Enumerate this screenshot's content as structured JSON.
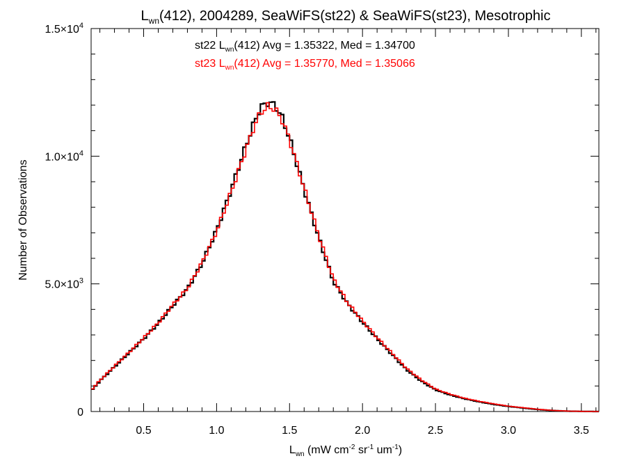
{
  "chart_data": {
    "type": "line",
    "step": true,
    "title": {
      "main": "L",
      "sub": "wn",
      "rest": "(412), 2004289, SeaWiFS(st22) & SeaWiFS(st23), Mesotrophic"
    },
    "xlabel": {
      "main": "L",
      "sub": "wn",
      "rest1": " (mW cm",
      "sup1": "-2",
      "rest2": " sr",
      "sup2": "-1",
      "rest3": " um",
      "sup3": "-1",
      "rest4": ")"
    },
    "ylabel": "Number of Observations",
    "xlim": [
      0.14,
      3.62
    ],
    "ylim": [
      0,
      15000
    ],
    "x_ticks": [
      "0.5",
      "1.0",
      "1.5",
      "2.0",
      "2.5",
      "3.0",
      "3.5"
    ],
    "y_ticks": [
      {
        "value": 0,
        "label": "0",
        "exp": ""
      },
      {
        "value": 5000,
        "label": "5.0×10",
        "exp": "3"
      },
      {
        "value": 10000,
        "label": "1.0×10",
        "exp": "4"
      },
      {
        "value": 15000,
        "label": "1.5×10",
        "exp": "4"
      }
    ],
    "annotations": [
      {
        "color": "#000000",
        "pre": "st22 L",
        "sub": "wn",
        "post": "(412) Avg = 1.35322, Med = 1.34700"
      },
      {
        "color": "#ff0000",
        "pre": "st23 L",
        "sub": "wn",
        "post": "(412) Avg = 1.35770, Med = 1.35066"
      }
    ],
    "series": [
      {
        "name": "st22",
        "color": "#000000",
        "points": [
          [
            0.14,
            800
          ],
          [
            0.2,
            1200
          ],
          [
            0.3,
            1750
          ],
          [
            0.4,
            2300
          ],
          [
            0.5,
            2850
          ],
          [
            0.6,
            3450
          ],
          [
            0.7,
            4150
          ],
          [
            0.8,
            4800
          ],
          [
            0.9,
            5800
          ],
          [
            1.0,
            7100
          ],
          [
            1.1,
            8700
          ],
          [
            1.2,
            10400
          ],
          [
            1.25,
            11200
          ],
          [
            1.3,
            11900
          ],
          [
            1.35,
            12100
          ],
          [
            1.4,
            12000
          ],
          [
            1.45,
            11500
          ],
          [
            1.5,
            10700
          ],
          [
            1.55,
            9700
          ],
          [
            1.6,
            8700
          ],
          [
            1.7,
            6800
          ],
          [
            1.8,
            5100
          ],
          [
            1.9,
            4200
          ],
          [
            2.0,
            3500
          ],
          [
            2.1,
            2850
          ],
          [
            2.2,
            2250
          ],
          [
            2.3,
            1650
          ],
          [
            2.4,
            1200
          ],
          [
            2.5,
            850
          ],
          [
            2.6,
            650
          ],
          [
            2.7,
            500
          ],
          [
            2.8,
            380
          ],
          [
            2.9,
            280
          ],
          [
            3.0,
            200
          ],
          [
            3.1,
            140
          ],
          [
            3.2,
            80
          ],
          [
            3.3,
            40
          ],
          [
            3.4,
            15
          ],
          [
            3.5,
            5
          ],
          [
            3.62,
            0
          ]
        ]
      },
      {
        "name": "st23",
        "color": "#ff0000",
        "points": [
          [
            0.14,
            830
          ],
          [
            0.2,
            1220
          ],
          [
            0.3,
            1780
          ],
          [
            0.4,
            2320
          ],
          [
            0.5,
            2880
          ],
          [
            0.6,
            3480
          ],
          [
            0.7,
            4180
          ],
          [
            0.8,
            4820
          ],
          [
            0.9,
            5830
          ],
          [
            1.0,
            7050
          ],
          [
            1.1,
            8600
          ],
          [
            1.2,
            10250
          ],
          [
            1.25,
            11050
          ],
          [
            1.3,
            11700
          ],
          [
            1.35,
            11950
          ],
          [
            1.4,
            11850
          ],
          [
            1.45,
            11400
          ],
          [
            1.5,
            10650
          ],
          [
            1.55,
            9700
          ],
          [
            1.6,
            8750
          ],
          [
            1.7,
            6900
          ],
          [
            1.8,
            5200
          ],
          [
            1.9,
            4250
          ],
          [
            2.0,
            3550
          ],
          [
            2.1,
            2900
          ],
          [
            2.2,
            2300
          ],
          [
            2.3,
            1700
          ],
          [
            2.4,
            1250
          ],
          [
            2.5,
            880
          ],
          [
            2.6,
            680
          ],
          [
            2.7,
            520
          ],
          [
            2.8,
            400
          ],
          [
            2.9,
            300
          ],
          [
            3.0,
            210
          ],
          [
            3.1,
            150
          ],
          [
            3.2,
            90
          ],
          [
            3.3,
            45
          ],
          [
            3.4,
            18
          ],
          [
            3.5,
            6
          ],
          [
            3.62,
            0
          ]
        ]
      }
    ]
  }
}
